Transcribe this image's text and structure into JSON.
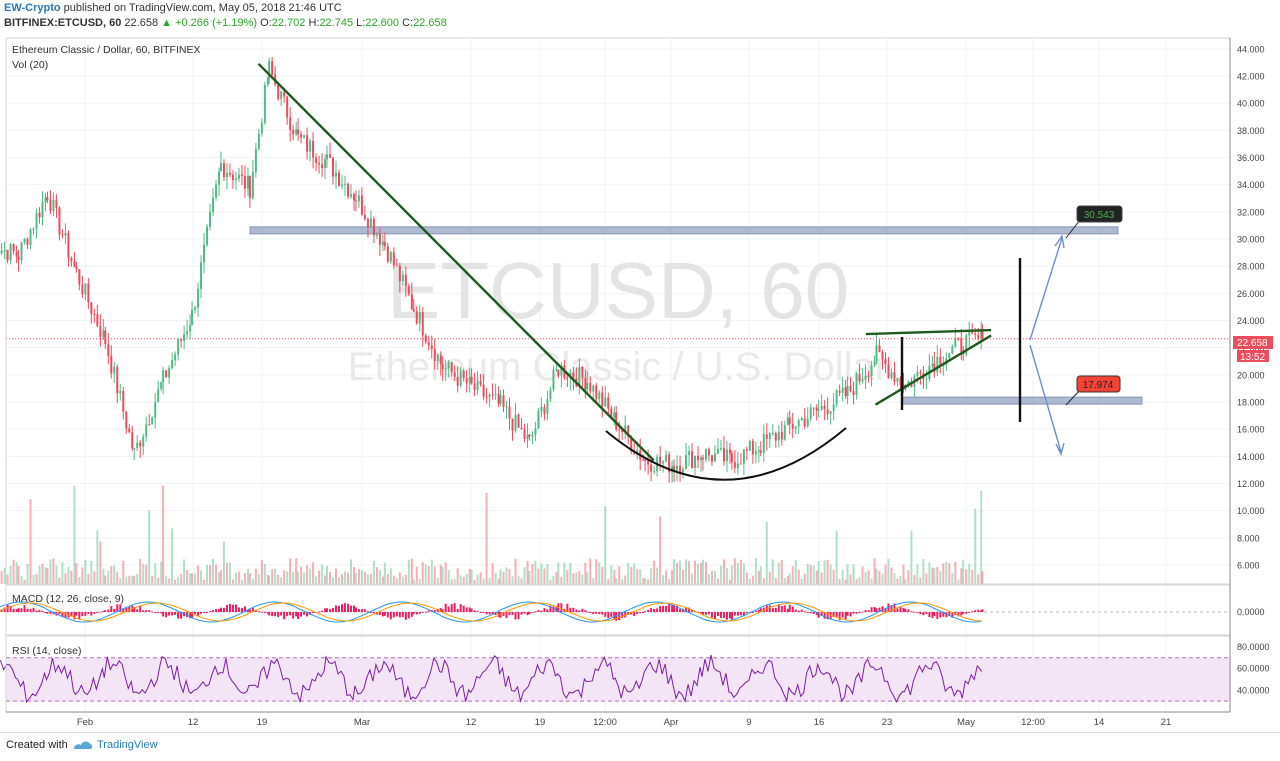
{
  "header": {
    "author": "EW-Crypto",
    "published": "published on TradingView.com, May 05, 2018 21:46 UTC",
    "symbol_line": "BITFINEX:ETCUSD, 60",
    "last": "22.658",
    "change": "▲ +0.266 (+1.19%)",
    "ohlc": {
      "o_label": "O:",
      "o": "22.702",
      "h_label": "H:",
      "h": "22.745",
      "l_label": "L:",
      "l": "22.600",
      "c_label": "C:",
      "c": "22.658"
    }
  },
  "main_pane": {
    "title": "Ethereum Classic / Dollar, 60, BITFINEX",
    "vol_label": "Vol (20)",
    "watermark_symbol": "ETCUSD, 60",
    "watermark_name": "Ethereum Classic / U.S. Dollar",
    "current_price": "22.658",
    "countdown": "13:52",
    "target_up": "30.543",
    "target_down": "17.974"
  },
  "macd_pane": {
    "label": "MACD (12, 26, close, 9)",
    "tick": "0.0000"
  },
  "rsi_pane": {
    "label": "RSI (14, close)",
    "ticks": [
      "80.0000",
      "60.0000",
      "40.0000"
    ]
  },
  "footer": {
    "created_with": "Created with",
    "brand": "TradingView"
  },
  "colors": {
    "up": "#53b987",
    "down": "#eb4d5c",
    "trendline": "#1e5a1e",
    "zone": "#9aa8c8",
    "macd_hist": "#e91e63",
    "rsi": "#7b1fa2",
    "rsi_band": "#f3e5f5",
    "target_up": "#4caf50",
    "target_down": "#f44336",
    "arrow": "#6f8fc8"
  },
  "chart_data": {
    "type": "candlestick",
    "title": "Ethereum Classic / Dollar, 60, BITFINEX",
    "y_ticks": [
      44,
      42,
      40,
      38,
      36,
      34,
      32,
      30,
      28,
      26,
      24,
      22,
      20,
      18,
      16,
      14,
      12,
      10,
      8,
      6
    ],
    "ylim": [
      4.6,
      44.8
    ],
    "x_tick_labels": [
      "Feb",
      "12",
      "19",
      "Mar",
      "12",
      "19",
      "12:00",
      "Apr",
      "9",
      "16",
      "23",
      "May",
      "12:00",
      "14",
      "21"
    ],
    "series": [
      {
        "name": "ETCUSD",
        "x": [
          "Jan 22",
          "Jan 25",
          "Jan 28",
          "Jan 31",
          "Feb 3",
          "Feb 6",
          "Feb 9",
          "Feb 12",
          "Feb 15",
          "Feb 18",
          "Feb 20",
          "Feb 23",
          "Feb 26",
          "Mar 1",
          "Mar 4",
          "Mar 7",
          "Mar 10",
          "Mar 13",
          "Mar 16",
          "Mar 19",
          "Mar 22",
          "Mar 25",
          "Mar 28",
          "Mar 31",
          "Apr 3",
          "Apr 6",
          "Apr 9",
          "Apr 12",
          "Apr 15",
          "Apr 18",
          "Apr 21",
          "Apr 24",
          "Apr 27",
          "Apr 30",
          "May 3",
          "May 5"
        ],
        "y": [
          29.6,
          28.8,
          33.4,
          27.5,
          22.5,
          14.2,
          19.6,
          24.4,
          35.5,
          33.8,
          42.5,
          37.4,
          35.7,
          33.1,
          29.6,
          24.9,
          20.6,
          19.1,
          17.7,
          15.0,
          20.5,
          19.6,
          16.5,
          13.7,
          13.4,
          14.2,
          13.7,
          14.8,
          16.2,
          17.4,
          18.6,
          21.4,
          19.2,
          21.0,
          22.3,
          22.658
        ]
      }
    ],
    "current_price": 22.658,
    "annotations": {
      "resistance_zone": 30.6,
      "support_zone": 18.1,
      "target_up": 30.543,
      "target_down": 17.974,
      "descending_trendline": [
        [
          "Feb 19",
          42.9
        ],
        [
          "Apr 1",
          13.7
        ]
      ],
      "triangle_upper": [
        [
          "Apr 23",
          23.0
        ],
        [
          "May 6",
          23.3
        ]
      ],
      "triangle_lower": [
        [
          "Apr 24",
          17.8
        ],
        [
          "May 6",
          22.9
        ]
      ]
    },
    "macd": {
      "params": "12, 26, close, 9",
      "zero": 0.0
    },
    "rsi": {
      "params": "14, close",
      "upper": 70,
      "lower": 30
    },
    "grid": true
  }
}
